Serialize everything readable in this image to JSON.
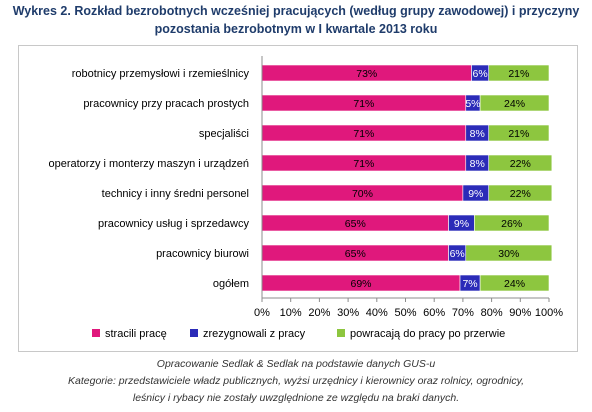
{
  "title_line1": "Wykres 2. Rozkład bezrobotnych wcześniej pracujących (według grupy zawodowej) i przyczyny",
  "title_line2": "pozostania bezrobotnym w I kwartale 2013 roku",
  "chart_data": {
    "type": "bar",
    "orientation": "horizontal",
    "stacked": "percent",
    "categories": [
      "robotnicy przemysłowi i rzemieślnicy",
      "pracownicy przy pracach prostych",
      "specjaliści",
      "operatorzy i monterzy maszyn i urządzeń",
      "technicy i inny średni personel",
      "pracownicy usług i sprzedawcy",
      "pracownicy biurowi",
      "ogółem"
    ],
    "series": [
      {
        "name": "stracili pracę",
        "color": "#e0187c",
        "values": [
          73,
          71,
          71,
          71,
          70,
          65,
          65,
          69
        ]
      },
      {
        "name": "zrezygnowali z pracy",
        "color": "#2b2bb8",
        "values": [
          6,
          5,
          8,
          8,
          9,
          9,
          6,
          7
        ]
      },
      {
        "name": "powracają do pracy po przerwie",
        "color": "#8dc63f",
        "values": [
          21,
          24,
          21,
          22,
          22,
          26,
          30,
          24
        ]
      }
    ],
    "data_labels": [
      [
        "73%",
        "6%",
        "21%"
      ],
      [
        "71%",
        "5%",
        "24%"
      ],
      [
        "71%",
        "8%",
        "21%"
      ],
      [
        "71%",
        "8%",
        "22%"
      ],
      [
        "70%",
        "9%",
        "22%"
      ],
      [
        "65%",
        "9%",
        "26%"
      ],
      [
        "65%",
        "6%",
        "30%"
      ],
      [
        "69%",
        "7%",
        "24%"
      ]
    ],
    "xlim": [
      0,
      100
    ],
    "xticks": [
      "0%",
      "10%",
      "20%",
      "30%",
      "40%",
      "50%",
      "60%",
      "70%",
      "80%",
      "90%",
      "100%"
    ],
    "grid": false,
    "legend_position": "bottom"
  },
  "notes_line1": "Opracowanie Sedlak & Sedlak na podstawie danych GUS-u",
  "notes_line2": "Kategorie: przedstawiciele władz publicznych, wyżsi urzędnicy i kierownicy oraz rolnicy, ogrodnicy,",
  "notes_line3": "leśnicy i rybacy nie zostały uwzględnione ze względu na braki danych."
}
